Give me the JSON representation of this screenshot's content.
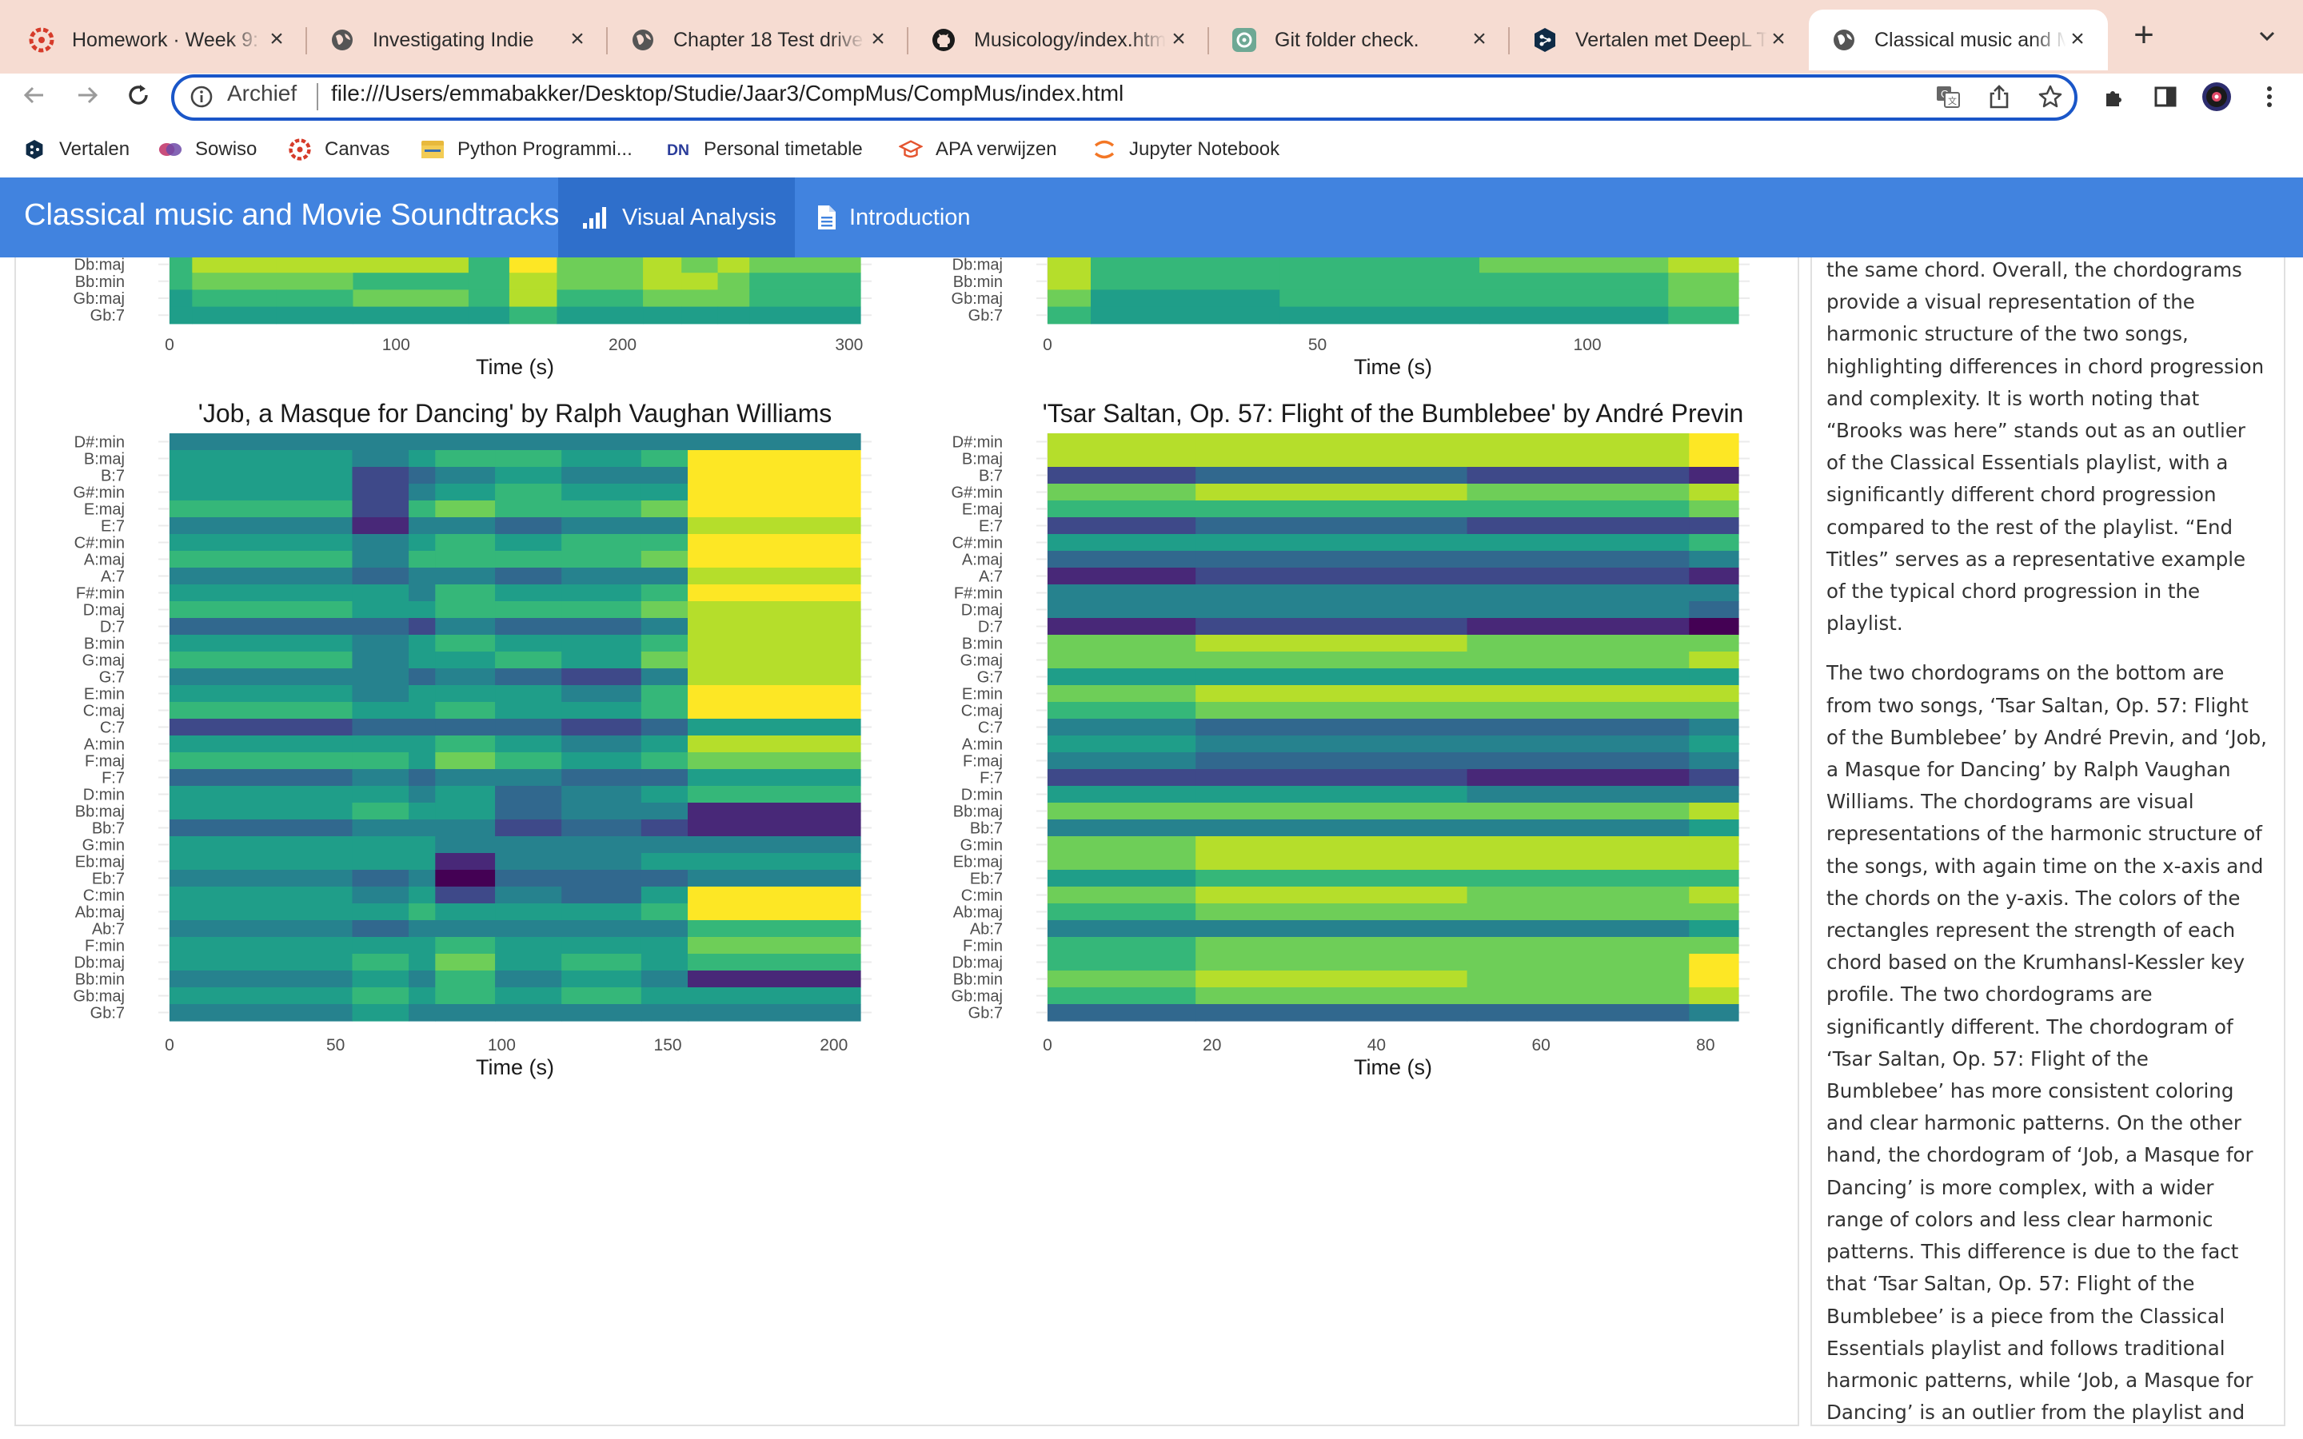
{
  "browser": {
    "tabs": [
      {
        "title": "Homework · Week 9: M",
        "favicon": "canvas-icon",
        "active": false
      },
      {
        "title": "Investigating Indie",
        "favicon": "globe-icon",
        "active": false
      },
      {
        "title": "Chapter 18 Test drive",
        "favicon": "globe-icon",
        "active": false
      },
      {
        "title": "Musicology/index.html",
        "favicon": "github-icon",
        "active": false
      },
      {
        "title": "Git folder check.",
        "favicon": "chatgpt-icon",
        "active": false
      },
      {
        "title": "Vertalen met DeepL T",
        "favicon": "deepl-icon",
        "active": false
      },
      {
        "title": "Classical music and M",
        "favicon": "globe-icon",
        "active": true
      }
    ],
    "address_prefix": "Archief",
    "url": "file:///Users/emmabakker/Desktop/Studie/Jaar3/CompMus/CompMus/index.html",
    "bookmarks": [
      {
        "label": "Vertalen",
        "icon": "deepl-icon"
      },
      {
        "label": "Sowiso",
        "icon": "sowiso-icon"
      },
      {
        "label": "Canvas",
        "icon": "canvas-icon"
      },
      {
        "label": "Python Programmi...",
        "icon": "folder-icon"
      },
      {
        "label": "Personal timetable",
        "icon": "dn-icon"
      },
      {
        "label": "APA verwijzen",
        "icon": "scribbr-icon"
      },
      {
        "label": "Jupyter Notebook",
        "icon": "jupyter-icon"
      }
    ]
  },
  "app": {
    "brand": "Classical music and Movie Soundtracks",
    "nav": [
      {
        "label": "Visual Analysis",
        "icon": "bar-chart-icon",
        "active": true
      },
      {
        "label": "Introduction",
        "icon": "document-icon",
        "active": false
      }
    ]
  },
  "sidebar": {
    "paragraphs": [
      "the same chord. Overall, the chordograms provide a visual representation of the harmonic structure of the two songs, highlighting differences in chord progression and complexity. It is worth noting that “Brooks was here” stands out as an outlier of the Classical Essentials playlist, with a significantly different chord progression compared to the rest of the playlist. “End Titles” serves as a representative example of the typical chord progression in the playlist.",
      "The two chordograms on the bottom are from two songs, ‘Tsar Saltan, Op. 57: Flight of the Bumblebee’ by André Previn, and ‘Job, a Masque for Dancing’ by Ralph Vaughan Williams. The chordograms are visual representations of the harmonic structure of the songs, with again time on the x-axis and the chords on the y-axis. The colors of the rectangles represent the strength of each chord based on the Krumhansl-Kessler key profile. The two chordograms are significantly different. The chordogram of ‘Tsar Saltan, Op. 57: Flight of the Bumblebee’ has more consistent coloring and clear harmonic patterns. On the other hand, the chordogram of ‘Job, a Masque for Dancing’ is more complex, with a wider range of colors and less clear harmonic patterns. This difference is due to the fact that ‘Tsar Saltan, Op. 57: Flight of the Bumblebee’ is a piece from the Classical Essentials playlist and follows traditional harmonic patterns, while ‘Job, a Masque for Dancing’ is an outlier from the playlist and has more complex and unpredictable harmonic patterns."
    ]
  },
  "colors": {
    "tabstrip": "#f6dcd2",
    "navbar": "#4183df",
    "navbar_active": "#2f6fcb",
    "omnibox_border": "#1a56c8",
    "viridis": [
      "#440154",
      "#482878",
      "#3e4989",
      "#31688e",
      "#26828e",
      "#1f9e89",
      "#35b779",
      "#6ece58",
      "#b5de2b",
      "#fde725"
    ]
  },
  "chart_data": [
    {
      "type": "heatmap",
      "title": "",
      "xlabel": "Time (s)",
      "visible_y_labels": [
        "Db:maj",
        "Bb:min",
        "Gb:maj",
        "Gb:7"
      ],
      "x_ticks": [
        0,
        100,
        200,
        300
      ],
      "xlim": [
        0,
        305
      ],
      "segment_bounds": [
        0,
        10,
        47,
        81,
        132,
        150,
        171,
        209,
        226,
        242,
        256,
        305
      ],
      "rows": [
        [
          6,
          8,
          8,
          8,
          6,
          9,
          7,
          8,
          7,
          8,
          7
        ],
        [
          6,
          7,
          7,
          6,
          6,
          8,
          7,
          8,
          8,
          7,
          6
        ],
        [
          5,
          6,
          6,
          7,
          6,
          8,
          6,
          7,
          7,
          7,
          6
        ],
        [
          5,
          5,
          5,
          5,
          5,
          6,
          5,
          5,
          5,
          5,
          5
        ]
      ]
    },
    {
      "type": "heatmap",
      "title": "",
      "xlabel": "Time (s)",
      "visible_y_labels": [
        "Db:maj",
        "Bb:min",
        "Gb:maj",
        "Gb:7"
      ],
      "x_ticks": [
        0,
        50,
        100
      ],
      "xlim": [
        0,
        128
      ],
      "segment_bounds": [
        0,
        8,
        43,
        80,
        115,
        128
      ],
      "rows": [
        [
          8,
          6,
          6,
          7,
          8
        ],
        [
          8,
          6,
          6,
          6,
          7
        ],
        [
          7,
          5,
          6,
          6,
          7
        ],
        [
          6,
          5,
          5,
          5,
          6
        ]
      ]
    },
    {
      "type": "heatmap",
      "title": "'Job, a Masque for Dancing' by Ralph  Vaughan Williams",
      "xlabel": "Time (s)",
      "y_labels": [
        "D#:min",
        "B:maj",
        "B:7",
        "G#:min",
        "E:maj",
        "E:7",
        "C#:min",
        "A:maj",
        "A:7",
        "F#:min",
        "D:maj",
        "D:7",
        "B:min",
        "G:maj",
        "G:7",
        "E:min",
        "C:maj",
        "C:7",
        "A:min",
        "F:maj",
        "F:7",
        "D:min",
        "Bb:maj",
        "Bb:7",
        "G:min",
        "Eb:maj",
        "Eb:7",
        "C:min",
        "Ab:maj",
        "Ab:7",
        "F:min",
        "Db:maj",
        "Bb:min",
        "Gb:maj",
        "Gb:7"
      ],
      "x_ticks": [
        0,
        50,
        100,
        150,
        200
      ],
      "xlim": [
        0,
        208
      ],
      "segment_bounds": [
        0,
        55,
        72,
        80,
        98,
        118,
        142,
        156,
        208
      ],
      "rows": [
        [
          4,
          4,
          4,
          4,
          4,
          4,
          4,
          4
        ],
        [
          5,
          4,
          5,
          6,
          6,
          5,
          6,
          9
        ],
        [
          5,
          2,
          3,
          4,
          5,
          4,
          4,
          9
        ],
        [
          5,
          2,
          4,
          5,
          6,
          5,
          5,
          9
        ],
        [
          6,
          2,
          6,
          7,
          6,
          6,
          7,
          9
        ],
        [
          4,
          1,
          4,
          4,
          3,
          4,
          4,
          8
        ],
        [
          5,
          4,
          5,
          6,
          5,
          6,
          6,
          9
        ],
        [
          6,
          4,
          6,
          6,
          6,
          6,
          7,
          9
        ],
        [
          4,
          3,
          4,
          4,
          3,
          4,
          4,
          8
        ],
        [
          5,
          5,
          4,
          6,
          5,
          5,
          6,
          9
        ],
        [
          6,
          5,
          5,
          6,
          6,
          6,
          7,
          8
        ],
        [
          3,
          3,
          2,
          4,
          3,
          3,
          4,
          8
        ],
        [
          5,
          4,
          5,
          6,
          5,
          5,
          6,
          8
        ],
        [
          6,
          4,
          5,
          5,
          6,
          5,
          7,
          8
        ],
        [
          4,
          4,
          3,
          4,
          3,
          2,
          4,
          8
        ],
        [
          5,
          4,
          5,
          5,
          5,
          4,
          6,
          9
        ],
        [
          6,
          5,
          5,
          6,
          5,
          5,
          6,
          9
        ],
        [
          2,
          3,
          3,
          3,
          3,
          2,
          3,
          5
        ],
        [
          5,
          5,
          5,
          6,
          5,
          4,
          5,
          8
        ],
        [
          6,
          6,
          5,
          7,
          6,
          5,
          6,
          7
        ],
        [
          3,
          4,
          3,
          4,
          4,
          3,
          3,
          5
        ],
        [
          5,
          5,
          4,
          5,
          3,
          4,
          5,
          6
        ],
        [
          5,
          6,
          5,
          5,
          3,
          4,
          4,
          1
        ],
        [
          3,
          4,
          4,
          4,
          2,
          3,
          2,
          1
        ],
        [
          5,
          5,
          5,
          4,
          4,
          4,
          4,
          4
        ],
        [
          5,
          5,
          5,
          1,
          4,
          4,
          5,
          5
        ],
        [
          4,
          3,
          4,
          0,
          3,
          3,
          3,
          4
        ],
        [
          5,
          4,
          5,
          2,
          4,
          3,
          5,
          9
        ],
        [
          5,
          5,
          6,
          5,
          5,
          5,
          6,
          9
        ],
        [
          4,
          3,
          4,
          4,
          4,
          4,
          4,
          6
        ],
        [
          5,
          5,
          5,
          6,
          5,
          5,
          5,
          7
        ],
        [
          5,
          6,
          5,
          7,
          5,
          6,
          5,
          6
        ],
        [
          4,
          5,
          4,
          6,
          4,
          5,
          4,
          1
        ],
        [
          5,
          6,
          5,
          6,
          5,
          6,
          5,
          5
        ],
        [
          4,
          5,
          4,
          4,
          4,
          4,
          4,
          4
        ]
      ]
    },
    {
      "type": "heatmap",
      "title": "'Tsar Saltan, Op. 57: Flight of the Bumblebee' by André Previn",
      "xlabel": "Time (s)",
      "y_labels": [
        "D#:min",
        "B:maj",
        "B:7",
        "G#:min",
        "E:maj",
        "E:7",
        "C#:min",
        "A:maj",
        "A:7",
        "F#:min",
        "D:maj",
        "D:7",
        "B:min",
        "G:maj",
        "G:7",
        "E:min",
        "C:maj",
        "C:7",
        "A:min",
        "F:maj",
        "F:7",
        "D:min",
        "Bb:maj",
        "Bb:7",
        "G:min",
        "Eb:maj",
        "Eb:7",
        "C:min",
        "Ab:maj",
        "Ab:7",
        "F:min",
        "Db:maj",
        "Bb:min",
        "Gb:maj",
        "Gb:7"
      ],
      "x_ticks": [
        0,
        20,
        40,
        60,
        80
      ],
      "xlim": [
        0,
        84
      ],
      "segment_bounds": [
        0,
        18,
        51,
        78,
        84
      ],
      "rows": [
        [
          8,
          8,
          8,
          9
        ],
        [
          8,
          8,
          8,
          9
        ],
        [
          2,
          3,
          2,
          1
        ],
        [
          7,
          8,
          7,
          8
        ],
        [
          6,
          6,
          6,
          7
        ],
        [
          2,
          3,
          2,
          2
        ],
        [
          5,
          5,
          5,
          6
        ],
        [
          3,
          3,
          3,
          4
        ],
        [
          1,
          2,
          2,
          1
        ],
        [
          4,
          4,
          4,
          4
        ],
        [
          4,
          4,
          4,
          3
        ],
        [
          1,
          2,
          1,
          0
        ],
        [
          7,
          8,
          7,
          7
        ],
        [
          7,
          7,
          7,
          8
        ],
        [
          5,
          5,
          5,
          5
        ],
        [
          7,
          8,
          8,
          8
        ],
        [
          6,
          7,
          7,
          7
        ],
        [
          4,
          3,
          3,
          4
        ],
        [
          5,
          4,
          4,
          5
        ],
        [
          4,
          3,
          3,
          4
        ],
        [
          2,
          2,
          1,
          2
        ],
        [
          5,
          5,
          4,
          4
        ],
        [
          7,
          7,
          7,
          8
        ],
        [
          4,
          4,
          4,
          5
        ],
        [
          7,
          8,
          8,
          8
        ],
        [
          7,
          8,
          8,
          8
        ],
        [
          5,
          6,
          6,
          6
        ],
        [
          7,
          8,
          7,
          8
        ],
        [
          6,
          7,
          7,
          7
        ],
        [
          4,
          4,
          4,
          5
        ],
        [
          6,
          7,
          7,
          7
        ],
        [
          6,
          7,
          7,
          9
        ],
        [
          7,
          8,
          7,
          9
        ],
        [
          6,
          7,
          7,
          8
        ],
        [
          3,
          3,
          3,
          4
        ]
      ]
    }
  ]
}
